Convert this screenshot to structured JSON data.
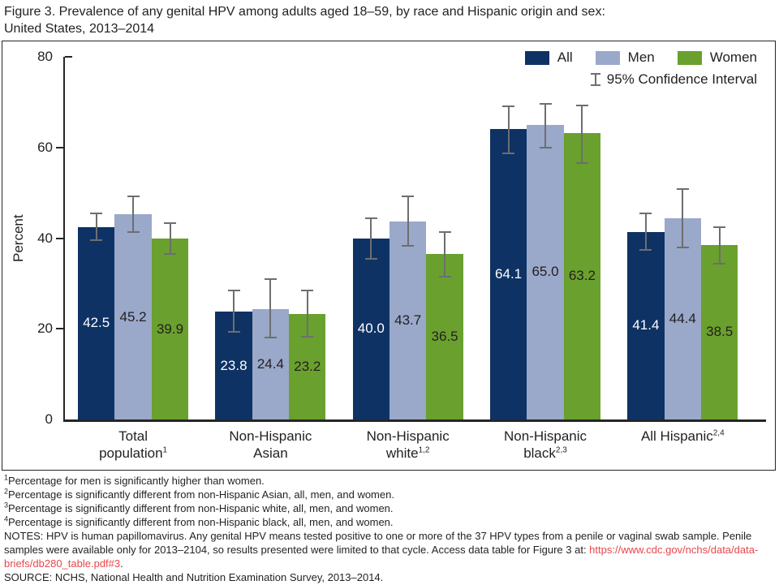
{
  "figure": {
    "title_line1": "Figure 3. Prevalence of any genital HPV among adults aged 18–59, by race and Hispanic origin and sex:",
    "title_line2": "United States, 2013–2014"
  },
  "legend": {
    "items": [
      {
        "label": "All",
        "color": "#0e3264"
      },
      {
        "label": "Men",
        "color": "#9aa8c9"
      },
      {
        "label": "Women",
        "color": "#6aa02d"
      }
    ],
    "ci_label": "95% Confidence Interval"
  },
  "chart_data": {
    "type": "bar",
    "title": "Prevalence of any genital HPV among adults aged 18–59, by race and Hispanic origin and sex: United States, 2013–2014",
    "xlabel": "",
    "ylabel": "Percent",
    "ylim": [
      0,
      80
    ],
    "yticks": [
      0,
      20,
      40,
      60,
      80
    ],
    "grid": false,
    "legend_position": "top-right",
    "error_bars": "95% confidence interval",
    "categories": [
      "Total population",
      "Non-Hispanic Asian",
      "Non-Hispanic white",
      "Non-Hispanic black",
      "All Hispanic"
    ],
    "category_display": [
      {
        "lines": [
          {
            "text": "Total"
          },
          {
            "text": "population",
            "sup": "1"
          }
        ]
      },
      {
        "lines": [
          {
            "text": "Non-Hispanic"
          },
          {
            "text": "Asian"
          }
        ]
      },
      {
        "lines": [
          {
            "text": "Non-Hispanic"
          },
          {
            "text": "white",
            "sup": "1,2"
          }
        ]
      },
      {
        "lines": [
          {
            "text": "Non-Hispanic"
          },
          {
            "text": "black",
            "sup": "2,3"
          }
        ]
      },
      {
        "lines": [
          {
            "text": "All Hispanic",
            "sup": "2,4"
          }
        ]
      }
    ],
    "series": [
      {
        "name": "All",
        "color": "#0e3264",
        "label_color": "#ffffff",
        "values": [
          42.5,
          23.8,
          40.0,
          64.1,
          41.4
        ],
        "ci_low": [
          39.5,
          19.3,
          35.5,
          58.7,
          37.4
        ],
        "ci_high": [
          45.5,
          28.4,
          44.4,
          69.0,
          45.4
        ]
      },
      {
        "name": "Men",
        "color": "#9aa8c9",
        "label_color": "#231f20",
        "values": [
          45.2,
          24.4,
          43.7,
          65.0,
          44.4
        ],
        "ci_low": [
          41.3,
          18.1,
          38.3,
          60.0,
          37.9
        ],
        "ci_high": [
          49.2,
          31.0,
          49.3,
          69.7,
          50.8
        ]
      },
      {
        "name": "Women",
        "color": "#6aa02d",
        "label_color": "#231f20",
        "values": [
          39.9,
          23.2,
          36.5,
          63.2,
          38.5
        ],
        "ci_low": [
          36.5,
          18.2,
          31.5,
          56.6,
          34.4
        ],
        "ci_high": [
          43.3,
          28.5,
          41.3,
          69.3,
          42.4
        ]
      }
    ],
    "value_labels_shown": true
  },
  "footnotes": [
    {
      "sup": "1",
      "text": "Percentage for men is significantly higher than women."
    },
    {
      "sup": "2",
      "text": "Percentage is significantly different from non-Hispanic Asian, all, men, and women."
    },
    {
      "sup": "3",
      "text": "Percentage is significantly different from non-Hispanic white, all, men, and women."
    },
    {
      "sup": "4",
      "text": "Percentage is significantly different from non-Hispanic black, all, men, and women."
    }
  ],
  "notes": {
    "prefix": "NOTES: HPV is human papillomavirus. Any genital HPV means tested positive to one or more of the 37 HPV types from a penile or vaginal swab sample. Penile samples were available only for 2013–2104, so results presented were limited to that cycle. Access data table for Figure 3 at: ",
    "link": "https://www.cdc.gov/nchs/data/data-briefs/db280_table.pdf#3",
    "suffix": "."
  },
  "source": "SOURCE: NCHS, National Health and Nutrition Examination Survey, 2013–2014.",
  "colors": {
    "text": "#231f20",
    "axis": "#262626",
    "error_bar": "#6d6e71",
    "link_red": "#e8474b",
    "bar_all": "#0e3264",
    "bar_men": "#9aa8c9",
    "bar_women": "#6aa02d"
  }
}
